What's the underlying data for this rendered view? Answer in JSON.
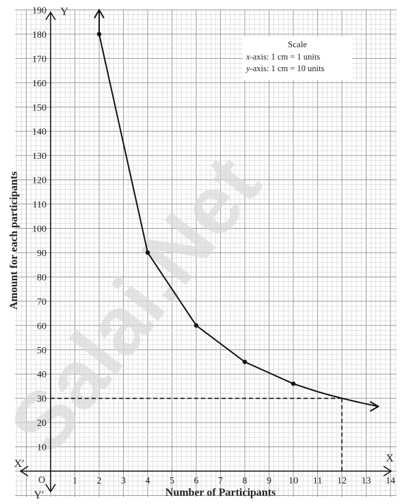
{
  "chart_data": {
    "type": "line",
    "x": [
      2,
      4,
      6,
      8,
      10
    ],
    "series": [
      {
        "values": [
          180,
          90,
          60,
          45,
          36
        ]
      }
    ],
    "xlabel": "Number of Participants",
    "ylabel": "Amount for each participants",
    "xlim": [
      0,
      14
    ],
    "ylim": [
      0,
      190
    ],
    "x_ticks": [
      1,
      2,
      3,
      4,
      5,
      6,
      7,
      8,
      9,
      10,
      11,
      12,
      13,
      14
    ],
    "y_ticks": [
      10,
      20,
      30,
      40,
      50,
      60,
      70,
      80,
      90,
      100,
      110,
      120,
      130,
      140,
      150,
      160,
      170,
      180,
      190
    ],
    "grid": true,
    "reference_point": {
      "x": 12,
      "y": 30
    },
    "origin_label": "O",
    "axis_letters": {
      "x": "X",
      "x_neg": "X′",
      "y": "Y",
      "y_neg": "Y′"
    },
    "scale_box": {
      "title": "Scale",
      "x_var": "x",
      "x_text": "-axis: 1 cm = 1 units",
      "y_var": "y",
      "y_text": "-axis: 1 cm = 10 units"
    },
    "watermark": "Salai.Net"
  }
}
